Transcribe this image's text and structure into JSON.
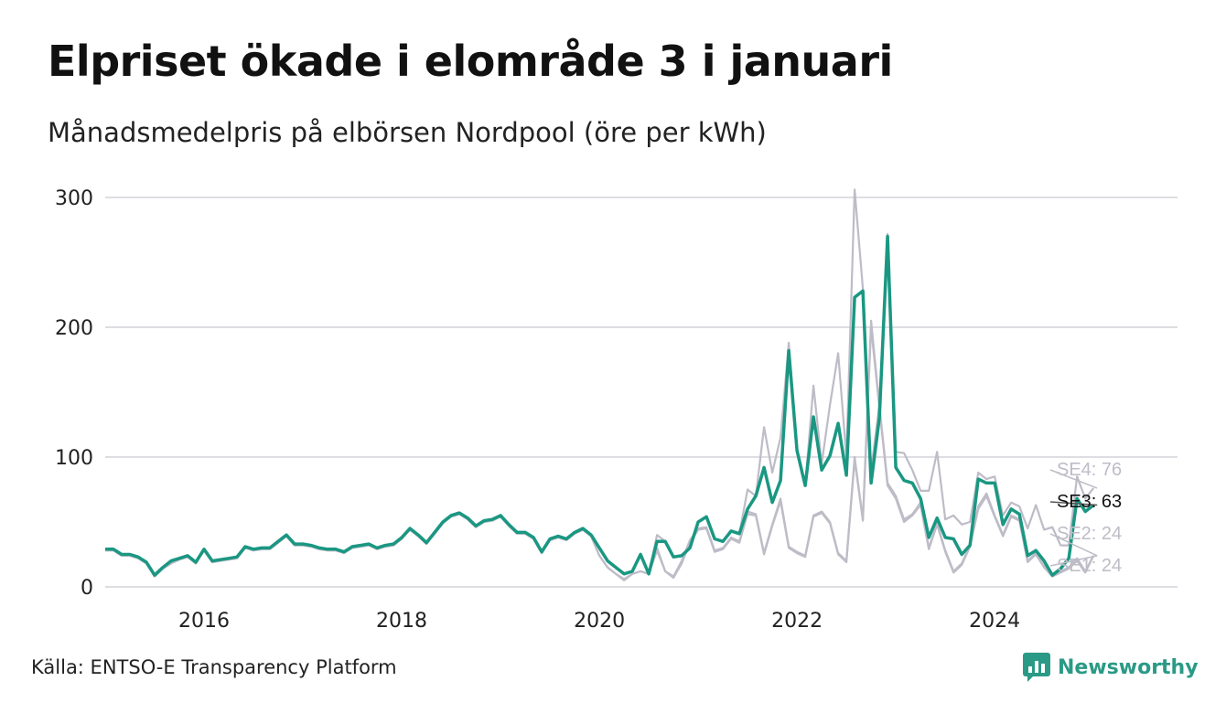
{
  "title": "Elpriset ökade i elområde 3 i januari",
  "subtitle": "Månadsmedelpris på elbörsen Nordpool (öre per kWh)",
  "source": "Källa: ENTSO-E Transparency Platform",
  "brand": "Newsworthy",
  "colors": {
    "highlight": "#1a9782",
    "others": "#bdbcc7",
    "grid": "#dedde2",
    "highlight_label": "#111111",
    "other_label": "#bdbcc7"
  },
  "chart_data": {
    "type": "line",
    "title": "Elpriset ökade i elområde 3 i januari",
    "subtitle": "Månadsmedelpris på elbörsen Nordpool (öre per kWh)",
    "xlabel": "",
    "ylabel": "",
    "xlim": [
      2015.0,
      2026.0
    ],
    "ylim": [
      0,
      300
    ],
    "x_ticks": [
      2016,
      2018,
      2020,
      2022,
      2024
    ],
    "y_ticks": [
      0,
      100,
      200,
      300
    ],
    "grid": "horizontal",
    "x_start": "2015-01",
    "x_step": "month",
    "series": [
      {
        "name": "SE3",
        "highlight": true,
        "end_label": "SE3: 63",
        "values": [
          29,
          29,
          25,
          25,
          23,
          19,
          9,
          15,
          20,
          22,
          24,
          19,
          29,
          20,
          21,
          22,
          23,
          31,
          29,
          30,
          30,
          35,
          40,
          33,
          33,
          32,
          30,
          29,
          29,
          27,
          31,
          32,
          33,
          30,
          32,
          33,
          38,
          45,
          40,
          34,
          42,
          50,
          55,
          57,
          53,
          47,
          51,
          52,
          55,
          48,
          42,
          42,
          38,
          27,
          37,
          39,
          37,
          42,
          45,
          40,
          30,
          20,
          15,
          10,
          12,
          25,
          10,
          35,
          35,
          23,
          24,
          30,
          50,
          54,
          37,
          35,
          43,
          41,
          60,
          70,
          92,
          65,
          82,
          182,
          105,
          78,
          131,
          90,
          101,
          126,
          86,
          223,
          228,
          80,
          130,
          270,
          92,
          82,
          80,
          68,
          38,
          53,
          38,
          37,
          25,
          32,
          83,
          80,
          80,
          48,
          60,
          56,
          24,
          28,
          20,
          9,
          14,
          22,
          68,
          58,
          63
        ]
      },
      {
        "name": "SE4",
        "end_label": "SE4: 76",
        "values": [
          29,
          29,
          25,
          25,
          23,
          19,
          9,
          15,
          20,
          22,
          24,
          19,
          29,
          20,
          21,
          22,
          23,
          31,
          29,
          30,
          30,
          35,
          40,
          33,
          33,
          32,
          30,
          29,
          29,
          27,
          31,
          32,
          33,
          30,
          32,
          33,
          38,
          45,
          40,
          34,
          42,
          50,
          55,
          57,
          53,
          47,
          51,
          52,
          55,
          48,
          42,
          42,
          38,
          27,
          37,
          39,
          37,
          42,
          45,
          40,
          30,
          20,
          15,
          10,
          12,
          25,
          10,
          40,
          35,
          23,
          24,
          30,
          50,
          54,
          37,
          35,
          43,
          41,
          75,
          70,
          123,
          88,
          115,
          188,
          105,
          78,
          155,
          95,
          140,
          180,
          100,
          306,
          230,
          90,
          140,
          272,
          104,
          103,
          90,
          74,
          74,
          104,
          52,
          55,
          48,
          50,
          88,
          83,
          85,
          55,
          65,
          62,
          45,
          63,
          44,
          46,
          32,
          32,
          85,
          68,
          76
        ]
      },
      {
        "name": "SE2",
        "end_label": "SE2: 24",
        "values": [
          28,
          28,
          24,
          24,
          22,
          18,
          8,
          14,
          18,
          21,
          23,
          18,
          28,
          19,
          20,
          21,
          22,
          30,
          28,
          29,
          29,
          34,
          39,
          32,
          32,
          31,
          29,
          28,
          28,
          26,
          30,
          31,
          32,
          29,
          31,
          32,
          37,
          44,
          39,
          33,
          41,
          49,
          54,
          56,
          52,
          46,
          50,
          51,
          54,
          47,
          41,
          41,
          37,
          26,
          36,
          38,
          36,
          41,
          44,
          39,
          24,
          15,
          10,
          6,
          10,
          12,
          10,
          30,
          12,
          8,
          20,
          36,
          45,
          46,
          28,
          30,
          38,
          35,
          58,
          56,
          26,
          48,
          68,
          31,
          27,
          24,
          55,
          58,
          50,
          26,
          20,
          100,
          52,
          205,
          140,
          80,
          70,
          52,
          56,
          65,
          30,
          49,
          28,
          12,
          18,
          32,
          62,
          72,
          55,
          40,
          55,
          52,
          20,
          26,
          16,
          9,
          12,
          15,
          22,
          12,
          24
        ]
      },
      {
        "name": "SE1",
        "end_label": "SE1: 24",
        "values": [
          28,
          28,
          24,
          24,
          22,
          18,
          8,
          14,
          18,
          21,
          23,
          18,
          28,
          19,
          20,
          21,
          22,
          30,
          28,
          29,
          29,
          34,
          39,
          32,
          32,
          31,
          29,
          28,
          28,
          26,
          30,
          31,
          32,
          29,
          31,
          32,
          37,
          44,
          39,
          33,
          41,
          49,
          54,
          56,
          52,
          46,
          50,
          51,
          54,
          47,
          41,
          41,
          37,
          26,
          36,
          38,
          36,
          41,
          44,
          39,
          24,
          15,
          10,
          5,
          10,
          12,
          10,
          28,
          12,
          7,
          18,
          34,
          44,
          45,
          27,
          29,
          37,
          34,
          56,
          55,
          25,
          47,
          66,
          30,
          26,
          23,
          54,
          57,
          49,
          25,
          19,
          98,
          51,
          200,
          138,
          78,
          68,
          50,
          55,
          63,
          29,
          48,
          27,
          11,
          17,
          31,
          60,
          70,
          54,
          39,
          54,
          51,
          19,
          25,
          15,
          8,
          11,
          14,
          20,
          11,
          24
        ]
      }
    ]
  }
}
